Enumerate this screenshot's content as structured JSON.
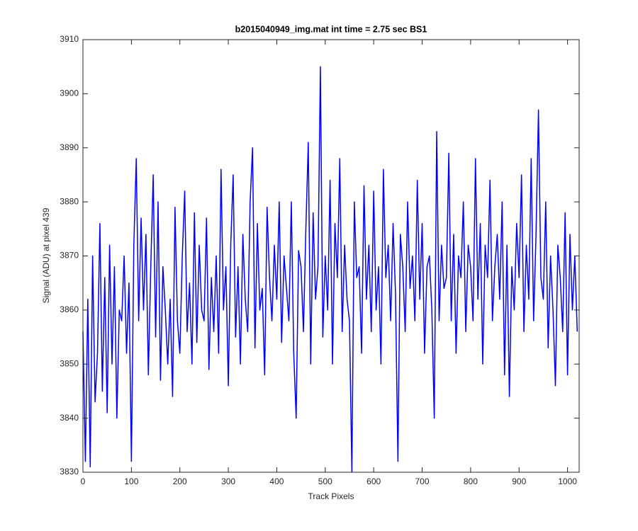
{
  "chart_data": {
    "type": "line",
    "title": "b2015040949_img.mat int time = 2.75 sec   BS1",
    "x_label": "Track Pixels",
    "y_label": "Signal (ADU) at pixel 439",
    "color": "#0000ff",
    "xlim": [
      0,
      1024
    ],
    "ylim": [
      3830,
      3910
    ],
    "xticks": [
      0,
      100,
      200,
      300,
      400,
      500,
      600,
      700,
      800,
      900,
      1000
    ],
    "yticks": [
      3830,
      3840,
      3850,
      3860,
      3870,
      3880,
      3890,
      3900,
      3910
    ],
    "x": [
      0,
      5,
      10,
      15,
      20,
      25,
      30,
      35,
      40,
      45,
      50,
      55,
      60,
      65,
      70,
      75,
      80,
      85,
      90,
      95,
      100,
      105,
      110,
      115,
      120,
      125,
      130,
      135,
      140,
      145,
      150,
      155,
      160,
      165,
      170,
      175,
      180,
      185,
      190,
      195,
      200,
      205,
      210,
      215,
      220,
      225,
      230,
      235,
      240,
      245,
      250,
      255,
      260,
      265,
      270,
      275,
      280,
      285,
      290,
      295,
      300,
      305,
      310,
      315,
      320,
      325,
      330,
      335,
      340,
      345,
      350,
      355,
      360,
      365,
      370,
      375,
      380,
      385,
      390,
      395,
      400,
      405,
      410,
      415,
      420,
      425,
      430,
      435,
      440,
      445,
      450,
      455,
      460,
      465,
      470,
      475,
      480,
      485,
      490,
      495,
      500,
      505,
      510,
      515,
      520,
      525,
      530,
      535,
      540,
      545,
      550,
      555,
      560,
      565,
      570,
      575,
      580,
      585,
      590,
      595,
      600,
      605,
      610,
      615,
      620,
      625,
      630,
      635,
      640,
      645,
      650,
      655,
      660,
      665,
      670,
      675,
      680,
      685,
      690,
      695,
      700,
      705,
      710,
      715,
      720,
      725,
      730,
      735,
      740,
      745,
      750,
      755,
      760,
      765,
      770,
      775,
      780,
      785,
      790,
      795,
      800,
      805,
      810,
      815,
      820,
      825,
      830,
      835,
      840,
      845,
      850,
      855,
      860,
      865,
      870,
      875,
      880,
      885,
      890,
      895,
      900,
      905,
      910,
      915,
      920,
      925,
      930,
      935,
      940,
      945,
      950,
      955,
      960,
      965,
      970,
      975,
      980,
      985,
      990,
      995,
      1000,
      1005,
      1010,
      1015,
      1020
    ],
    "values": [
      3856,
      3832,
      3862,
      3831,
      3870,
      3843,
      3852,
      3876,
      3845,
      3866,
      3841,
      3872,
      3850,
      3868,
      3840,
      3860,
      3858,
      3870,
      3852,
      3865,
      3832,
      3872,
      3888,
      3858,
      3877,
      3860,
      3874,
      3848,
      3868,
      3885,
      3855,
      3880,
      3847,
      3868,
      3860,
      3850,
      3862,
      3844,
      3879,
      3858,
      3852,
      3870,
      3882,
      3856,
      3865,
      3850,
      3878,
      3854,
      3872,
      3860,
      3858,
      3877,
      3849,
      3866,
      3856,
      3870,
      3852,
      3886,
      3860,
      3868,
      3846,
      3872,
      3885,
      3855,
      3868,
      3850,
      3874,
      3862,
      3856,
      3880,
      3890,
      3853,
      3876,
      3860,
      3864,
      3848,
      3879,
      3866,
      3858,
      3872,
      3862,
      3880,
      3854,
      3870,
      3864,
      3858,
      3880,
      3852,
      3840,
      3871,
      3868,
      3856,
      3875,
      3891,
      3850,
      3878,
      3862,
      3868,
      3905,
      3855,
      3870,
      3860,
      3884,
      3850,
      3876,
      3866,
      3888,
      3856,
      3872,
      3862,
      3858,
      3830,
      3880,
      3866,
      3868,
      3852,
      3883,
      3862,
      3872,
      3856,
      3882,
      3860,
      3868,
      3850,
      3886,
      3866,
      3872,
      3858,
      3876,
      3863,
      3832,
      3874,
      3868,
      3856,
      3880,
      3864,
      3870,
      3858,
      3884,
      3862,
      3876,
      3852,
      3868,
      3870,
      3860,
      3840,
      3893,
      3858,
      3872,
      3864,
      3866,
      3889,
      3858,
      3874,
      3852,
      3870,
      3866,
      3880,
      3856,
      3872,
      3868,
      3858,
      3888,
      3862,
      3876,
      3850,
      3872,
      3866,
      3884,
      3858,
      3868,
      3874,
      3862,
      3880,
      3848,
      3872,
      3844,
      3868,
      3860,
      3876,
      3866,
      3885,
      3856,
      3872,
      3862,
      3888,
      3858,
      3874,
      3897,
      3866,
      3862,
      3880,
      3853,
      3870,
      3860,
      3846,
      3872,
      3866,
      3856,
      3878,
      3848,
      3874,
      3860,
      3870,
      3856
    ]
  }
}
